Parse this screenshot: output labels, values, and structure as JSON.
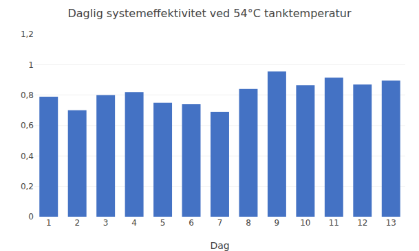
{
  "chart_data": {
    "type": "bar",
    "title": "Daglig systemeffektivitet ved 54°C tanktemperatur",
    "xlabel": "Dag",
    "categories": [
      1,
      2,
      3,
      4,
      5,
      6,
      7,
      8,
      9,
      10,
      11,
      12,
      13
    ],
    "values": [
      0.79,
      0.7,
      0.8,
      0.82,
      0.75,
      0.74,
      0.69,
      0.84,
      0.955,
      0.865,
      0.915,
      0.87,
      0.895
    ],
    "color": "#4472C4",
    "ylim": [
      0,
      1.2
    ],
    "yticks": [
      0,
      {
        "value": 0.2,
        "label": "0,2"
      },
      {
        "value": 0.4,
        "label": "0,4"
      },
      {
        "value": 0.6,
        "label": "0,6"
      },
      {
        "value": 0.8,
        "label": "0,8"
      },
      1,
      {
        "value": 1.2,
        "label": "1,2"
      }
    ],
    "grid": true
  }
}
